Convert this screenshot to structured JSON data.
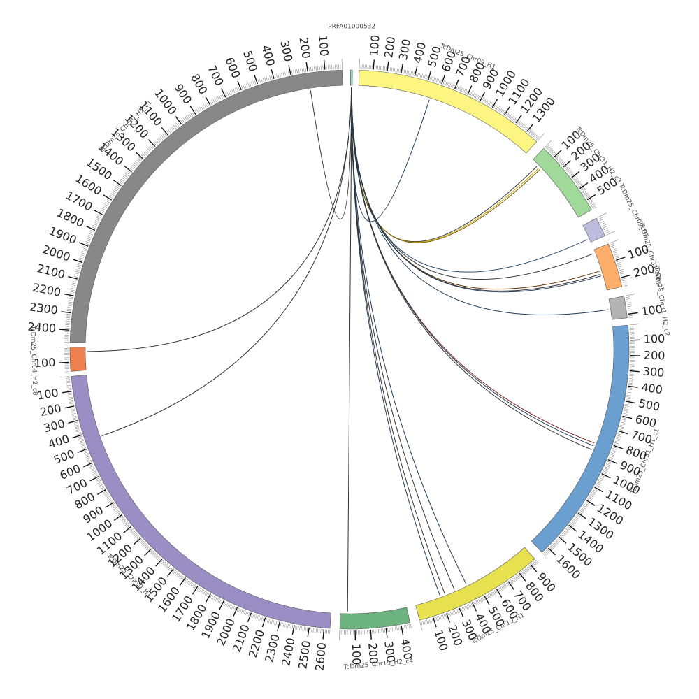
{
  "diagram": {
    "type": "circos",
    "segments": [
      {
        "name": "PRFA01000532",
        "length": 0,
        "color": "#8dd3c7",
        "ticks": []
      },
      {
        "name": "TcDm25_Chr09_H1",
        "length": 1400,
        "color": "#fdf582",
        "ticks": [
          100,
          200,
          300,
          400,
          500,
          600,
          700,
          800,
          900,
          1000,
          1100,
          1200,
          1300
        ]
      },
      {
        "name": "TcDm25_Chr31_H2_c3",
        "length": 580,
        "color": "#a1d99b",
        "ticks": [
          100,
          200,
          300,
          400,
          500
        ]
      },
      {
        "name": "TcDm25_Chr09_H2",
        "length": 100,
        "color": "#bcbddc",
        "ticks": []
      },
      {
        "name": "TcDm25_Chr31_H2_c1",
        "length": 250,
        "color": "#fdae6b",
        "ticks": [
          100,
          200
        ]
      },
      {
        "name": "TcDm25_Chr31_H2_c2",
        "length": 120,
        "color": "#b3b3b3",
        "ticks": [
          100
        ]
      },
      {
        "name": "TcDm25_Chr31_H1_c1",
        "length": 1650,
        "color": "#6a9fcf",
        "ticks": [
          100,
          200,
          300,
          400,
          500,
          600,
          700,
          800,
          900,
          1000,
          1100,
          1200,
          1300,
          1400,
          1500,
          1600
        ]
      },
      {
        "name": "TcDm25_Chr19_H1",
        "length": 950,
        "color": "#e7e04f",
        "ticks": [
          100,
          200,
          300,
          400,
          500,
          600,
          700,
          800,
          900
        ]
      },
      {
        "name": "TcDm25_Chr19_H2_c4",
        "length": 460,
        "color": "#6db37f",
        "ticks": [
          100,
          200,
          300,
          400
        ]
      },
      {
        "name": "TcDm25_Chr30_H1",
        "length": 2640,
        "color": "#9b8ec4",
        "ticks": [
          100,
          200,
          300,
          400,
          500,
          600,
          700,
          800,
          900,
          1000,
          1100,
          1200,
          1300,
          1400,
          1500,
          1600,
          1700,
          1800,
          1900,
          2000,
          2100,
          2200,
          2300,
          2400,
          2500,
          2600
        ]
      },
      {
        "name": "TcDm25_Chr04_H2_c8",
        "length": 160,
        "color": "#ef8050",
        "ticks": [
          100
        ]
      },
      {
        "name": "TcDm25_Chr30_H1_c1",
        "length": 2470,
        "color": "#888888",
        "ticks": [
          100,
          200,
          300,
          400,
          500,
          600,
          700,
          800,
          900,
          1000,
          1100,
          1200,
          1300,
          1400,
          1500,
          1600,
          1700,
          1800,
          1900,
          2000,
          2100,
          2200,
          2300,
          2400
        ]
      }
    ],
    "links": [
      {
        "target": "TcDm25_Chr09_H1",
        "position": 550,
        "color": "#1f3b57"
      },
      {
        "target": "TcDm25_Chr31_H2_c3",
        "position": 60,
        "color": "#333333"
      },
      {
        "target": "TcDm25_Chr31_H2_c3",
        "position": 80,
        "color": "#c9a800"
      },
      {
        "target": "TcDm25_Chr31_H2_c3",
        "position": 95,
        "color": "#7a5c00"
      },
      {
        "target": "TcDm25_Chr09_H2",
        "position": 80,
        "color": "#2a4d6e"
      },
      {
        "target": "TcDm25_Chr31_H2_c1",
        "position": 20,
        "color": "#333333"
      },
      {
        "target": "TcDm25_Chr31_H2_c1",
        "position": 130,
        "color": "#5c2e00"
      },
      {
        "target": "TcDm25_Chr31_H2_c1",
        "position": 150,
        "color": "#333333"
      },
      {
        "target": "TcDm25_Chr31_H2_c1",
        "position": 160,
        "color": "#1f3b57"
      },
      {
        "target": "TcDm25_Chr31_H2_c2",
        "position": 60,
        "color": "#1f3b57"
      },
      {
        "target": "TcDm25_Chr31_H1_c1",
        "position": 830,
        "color": "#7a1f1f"
      },
      {
        "target": "TcDm25_Chr31_H1_c1",
        "position": 850,
        "color": "#1f3b57"
      },
      {
        "target": "TcDm25_Chr31_H1_c1",
        "position": 880,
        "color": "#333333"
      },
      {
        "target": "TcDm25_Chr19_H1",
        "position": 200,
        "color": "#1f3b57"
      },
      {
        "target": "TcDm25_Chr19_H1",
        "position": 240,
        "color": "#333333"
      },
      {
        "target": "TcDm25_Chr19_H1",
        "position": 320,
        "color": "#333333"
      },
      {
        "target": "TcDm25_Chr19_H1",
        "position": 420,
        "color": "#1f3b57"
      },
      {
        "target": "TcDm25_Chr19_H2_c4",
        "position": 50,
        "color": "#333333"
      },
      {
        "target": "TcDm25_Chr30_H1",
        "position": 450,
        "color": "#333333"
      },
      {
        "target": "TcDm25_Chr04_H2_c8",
        "position": 30,
        "color": "#333333"
      },
      {
        "target": "TcDm25_Chr30_H1_c1",
        "position": 200,
        "color": "#333333"
      }
    ]
  }
}
